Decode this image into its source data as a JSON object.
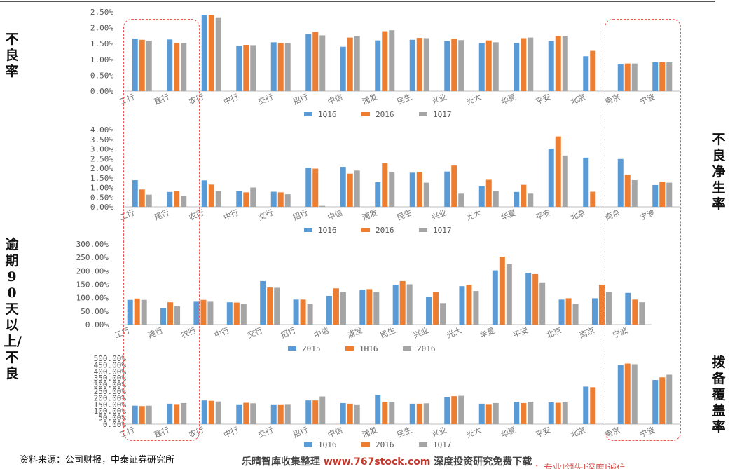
{
  "side_labels": {
    "npl_ratio": "不良率",
    "net_npl_generation": "不良净生率",
    "overdue90_to_npl": "逾期90天以上/不良",
    "provision_coverage": "拨备覆盖率"
  },
  "colors": {
    "series1": "#5b9bd5",
    "series2": "#ed7d31",
    "series3": "#a5a5a5",
    "highlight": "#e55353"
  },
  "footer": {
    "source": "资料来源：公司财报，中泰证券研究所",
    "watermark_text": "乐晴智库收集整理",
    "watermark_url": "www.767stock.com",
    "watermark_tail": "深度投资研究免费下载",
    "watermark2": "：专业|领先|深度|诚信"
  },
  "chart_data": [
    {
      "type": "bar",
      "name": "npl-ratio-chart",
      "categories": [
        "工行",
        "建行",
        "农行",
        "中行",
        "交行",
        "招行",
        "中信",
        "浦发",
        "民生",
        "兴业",
        "光大",
        "华夏",
        "平安",
        "北京",
        "南京",
        "宁波"
      ],
      "series": [
        {
          "name": "1Q16",
          "values": [
            1.66,
            1.63,
            2.41,
            1.43,
            1.54,
            1.81,
            1.4,
            1.6,
            1.62,
            1.58,
            1.52,
            1.52,
            1.58,
            1.1,
            0.84,
            0.91
          ]
        },
        {
          "name": "2016",
          "values": [
            1.62,
            1.52,
            2.4,
            1.46,
            1.52,
            1.87,
            1.69,
            1.89,
            1.68,
            1.65,
            1.6,
            1.67,
            1.74,
            1.27,
            0.87,
            0.91
          ]
        },
        {
          "name": "1Q17",
          "values": [
            1.59,
            1.52,
            2.33,
            1.45,
            1.52,
            1.76,
            1.74,
            1.92,
            1.67,
            1.61,
            1.54,
            1.69,
            1.74,
            null,
            0.87,
            0.91
          ]
        }
      ],
      "ylim": [
        0,
        2.5
      ],
      "yticks": [
        "0.00%",
        "0.50%",
        "1.00%",
        "1.50%",
        "2.00%",
        "2.50%"
      ],
      "ytick_values": [
        0,
        0.5,
        1.0,
        1.5,
        2.0,
        2.5
      ],
      "legend": "bottom",
      "grid": false
    },
    {
      "type": "bar",
      "name": "net-npl-generation-chart",
      "categories": [
        "工行",
        "建行",
        "农行",
        "中行",
        "交行",
        "招行",
        "中信",
        "浦发",
        "民生",
        "兴业",
        "光大",
        "华夏",
        "平安",
        "北京",
        "南京",
        "宁波"
      ],
      "series": [
        {
          "name": "1Q16",
          "values": [
            1.38,
            0.77,
            1.37,
            0.83,
            0.78,
            2.03,
            2.07,
            1.28,
            1.77,
            1.83,
            1.07,
            0.77,
            3.02,
            2.55,
            2.48,
            1.13
          ]
        },
        {
          "name": "2016",
          "values": [
            0.9,
            0.8,
            1.15,
            0.75,
            0.75,
            1.98,
            1.72,
            2.28,
            1.82,
            2.14,
            1.4,
            1.14,
            3.65,
            0.78,
            1.66,
            1.3
          ]
        },
        {
          "name": "1Q17",
          "values": [
            0.63,
            0.55,
            0.82,
            1.0,
            0.65,
            0.05,
            1.88,
            1.82,
            1.25,
            0.68,
            0.82,
            0.68,
            2.66,
            null,
            1.38,
            1.25
          ]
        }
      ],
      "ylim": [
        0,
        4.0
      ],
      "yticks": [
        "0.00%",
        "0.50%",
        "1.00%",
        "1.50%",
        "2.00%",
        "2.50%",
        "3.00%",
        "3.50%",
        "4.00%"
      ],
      "ytick_values": [
        0,
        0.5,
        1.0,
        1.5,
        2.0,
        2.5,
        3.0,
        3.5,
        4.0
      ],
      "legend": "bottom",
      "grid": false
    },
    {
      "type": "bar",
      "name": "overdue90-npl-chart",
      "categories": [
        "工行",
        "建行",
        "农行",
        "中行",
        "交行",
        "招行",
        "中信",
        "浦发",
        "民生",
        "兴业",
        "光大",
        "华夏",
        "平安",
        "北京",
        "南京",
        "宁波"
      ],
      "series": [
        {
          "name": "2015",
          "values": [
            92,
            60,
            85,
            83,
            162,
            93,
            107,
            130,
            148,
            103,
            143,
            202,
            193,
            93,
            98,
            118
          ]
        },
        {
          "name": "1H16",
          "values": [
            97,
            83,
            92,
            82,
            138,
            93,
            135,
            132,
            162,
            122,
            148,
            253,
            188,
            98,
            148,
            93
          ]
        },
        {
          "name": "2016",
          "values": [
            92,
            68,
            85,
            77,
            137,
            78,
            120,
            122,
            150,
            80,
            125,
            225,
            157,
            77,
            122,
            83
          ]
        }
      ],
      "ylim": [
        0,
        300
      ],
      "yticks": [
        "0.00%",
        "50.00%",
        "100.00%",
        "150.00%",
        "200.00%",
        "250.00%",
        "300.00%"
      ],
      "ytick_values": [
        0,
        50,
        100,
        150,
        200,
        250,
        300
      ],
      "legend": "bottom",
      "grid": false
    },
    {
      "type": "bar",
      "name": "provision-coverage-chart",
      "categories": [
        "工行",
        "建行",
        "农行",
        "中行",
        "交行",
        "招行",
        "中信",
        "浦发",
        "民生",
        "兴业",
        "光大",
        "华夏",
        "平安",
        "北京",
        "南京",
        "宁波"
      ],
      "series": [
        {
          "name": "1Q16",
          "values": [
            140,
            155,
            180,
            150,
            150,
            180,
            160,
            222,
            155,
            205,
            155,
            170,
            165,
            285,
            450,
            335
          ]
        },
        {
          "name": "2016",
          "values": [
            137,
            152,
            177,
            162,
            150,
            180,
            155,
            170,
            155,
            212,
            152,
            160,
            162,
            280,
            460,
            355
          ]
        },
        {
          "name": "1Q17",
          "values": [
            140,
            160,
            172,
            158,
            152,
            210,
            150,
            168,
            158,
            215,
            160,
            170,
            165,
            null,
            455,
            375
          ]
        }
      ],
      "ylim": [
        0,
        500
      ],
      "yticks": [
        "0.00%",
        "50.00%",
        "100.00%",
        "150.00%",
        "200.00%",
        "250.00%",
        "300.00%",
        "350.00%",
        "400.00%",
        "450.00%",
        "500.00%"
      ],
      "ytick_values": [
        0,
        50,
        100,
        150,
        200,
        250,
        300,
        350,
        400,
        450,
        500
      ],
      "legend": "bottom",
      "grid": false
    }
  ]
}
